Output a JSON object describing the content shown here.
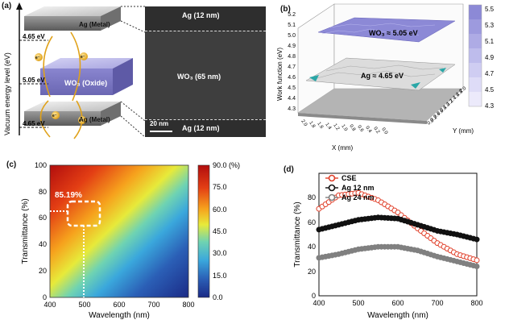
{
  "panel_a": {
    "label": "(a)",
    "yaxis_label": "Vacuum energy level (eV)",
    "energy_levels": [
      "4.65 eV",
      "5.05 eV",
      "4.65 eV"
    ],
    "layers": [
      "Ag (Metal)",
      "WO₃ (Oxide)",
      "Ag (Metal)"
    ],
    "electron_label": "e⁻",
    "tem_labels": {
      "top": "Ag (12 nm)",
      "middle": "WO₃ (65 nm)",
      "bottom": "Ag (12 nm)",
      "scale": "20 nm"
    }
  },
  "panel_b": {
    "label": "(b)",
    "zlabel": "Work function (eV)",
    "xlabel": "X (mm)",
    "ylabel": "Y (mm)",
    "z_ticks": [
      "5.0",
      "4.9",
      "4.8",
      "4.7",
      "4.6",
      "4.5",
      "4.4",
      "4.3"
    ],
    "z_ticks_upper": [
      "5.2",
      "5.1"
    ],
    "x_ticks": [
      "2.0",
      "1.8",
      "1.6",
      "1.4",
      "1.2",
      "1.0",
      "0.8",
      "0.6",
      "0.4",
      "0.2",
      "0.0"
    ],
    "y_ticks": [
      "0.0",
      "0.2",
      "0.4",
      "0.6",
      "0.8",
      "1.0",
      "1.2",
      "1.4",
      "1.6",
      "1.8",
      "2.0"
    ],
    "surface_labels": [
      "WO₃ ≈ 5.05 eV",
      "Ag ≈ 4.65 eV"
    ],
    "colorbar_ticks": [
      "5.5",
      "5.3",
      "5.1",
      "4.9",
      "4.7",
      "4.5",
      "4.3"
    ],
    "colors": {
      "wo3": "#8c89d6",
      "ag": "#d9d9d9",
      "teal": "#2aa7a7"
    }
  },
  "panel_c": {
    "label": "(c)",
    "annotation": "85.19%",
    "xlabel": "Wavelength (nm)",
    "ylabel": "Transmittance (%)",
    "x_ticks": [
      "400",
      "500",
      "600",
      "700",
      "800"
    ],
    "y_ticks": [
      "0",
      "20",
      "40",
      "60",
      "80",
      "100"
    ],
    "colorbar_ticks": [
      "90.0 (%)",
      "75.0",
      "60.0",
      "45.0",
      "30.0",
      "15.0",
      "0.0"
    ]
  },
  "chart_data": [
    {
      "type": "heatmap",
      "xlabel": "Wavelength (nm)",
      "ylabel": "Transmittance (%)",
      "xlim": [
        400,
        800
      ],
      "ylim": [
        0,
        100
      ],
      "colorbar_range": [
        0,
        90
      ],
      "highlight": {
        "x": 485,
        "y": 65,
        "value": 85.19
      }
    },
    {
      "type": "line",
      "xlabel": "Wavelength (nm)",
      "ylabel": "Transmittance (%)",
      "xlim": [
        400,
        800
      ],
      "ylim": [
        0,
        100
      ],
      "x": [
        400,
        450,
        500,
        550,
        600,
        650,
        700,
        750,
        800
      ],
      "series": [
        {
          "name": "CSE",
          "color": "#e0402a",
          "values": [
            71,
            82,
            84,
            78,
            68,
            55,
            43,
            34,
            29
          ]
        },
        {
          "name": "Ag 12 nm",
          "color": "#111111",
          "values": [
            54,
            58,
            62,
            64,
            63,
            58,
            53,
            50,
            46
          ]
        },
        {
          "name": "Ag 24 nm",
          "color": "#808080",
          "values": [
            31,
            34,
            38,
            40,
            40,
            37,
            32,
            28,
            24
          ]
        }
      ]
    }
  ],
  "panel_d": {
    "label": "(d)",
    "x_ticks": [
      "400",
      "500",
      "600",
      "700",
      "800"
    ],
    "y_ticks": [
      "0",
      "20",
      "40",
      "60",
      "80"
    ]
  }
}
